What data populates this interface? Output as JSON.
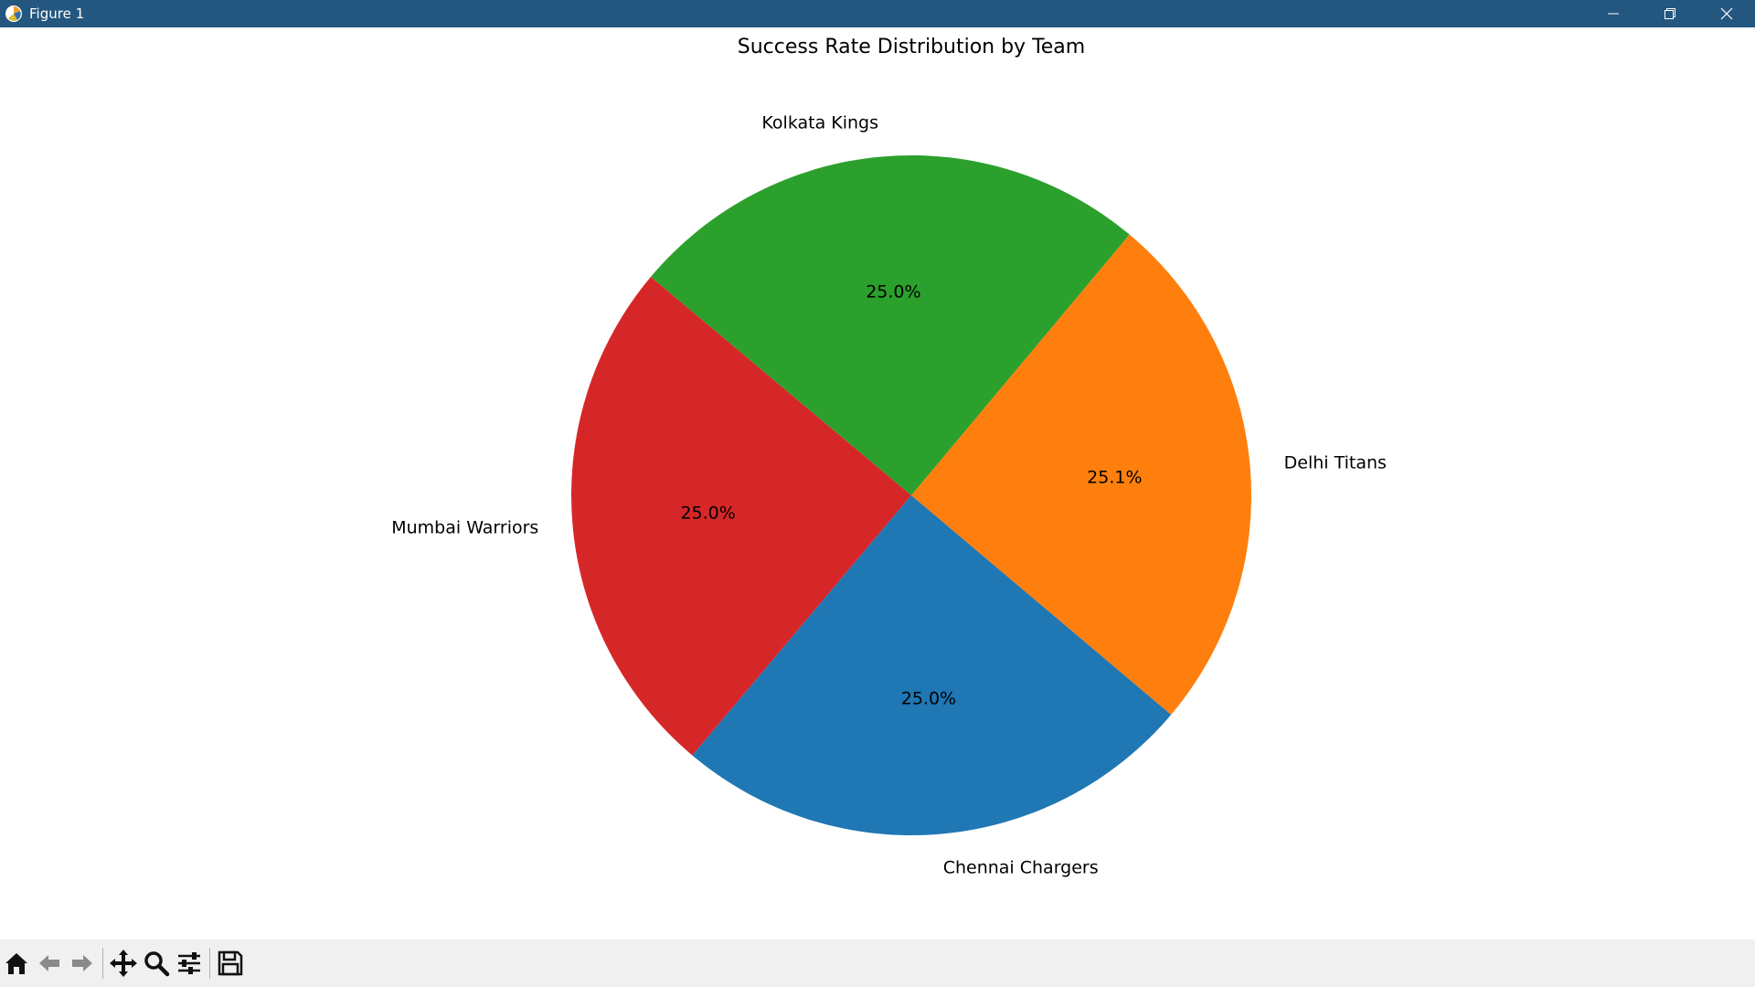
{
  "window": {
    "title": "Figure 1",
    "titlebar_color": "#245780"
  },
  "toolbar": {
    "buttons": [
      {
        "name": "home-icon"
      },
      {
        "name": "back-arrow-icon"
      },
      {
        "name": "forward-arrow-icon"
      },
      {
        "name": "pan-move-icon"
      },
      {
        "name": "zoom-magnifier-icon"
      },
      {
        "name": "configure-subplots-icon"
      },
      {
        "name": "save-floppy-icon"
      }
    ]
  },
  "chart_data": {
    "type": "pie",
    "title": "Success Rate Distribution by Team",
    "start_angle_deg": 140,
    "direction": "counterclockwise",
    "slices": [
      {
        "label": "Mumbai Warriors",
        "value": 25.0,
        "pct_label": "25.0%",
        "color": "#d62728"
      },
      {
        "label": "Chennai Chargers",
        "value": 25.0,
        "pct_label": "25.0%",
        "color": "#1f77b4"
      },
      {
        "label": "Delhi Titans",
        "value": 25.1,
        "pct_label": "25.1%",
        "color": "#ff7f0e"
      },
      {
        "label": "Kolkata Kings",
        "value": 25.0,
        "pct_label": "25.0%",
        "color": "#2ca02c"
      }
    ]
  }
}
